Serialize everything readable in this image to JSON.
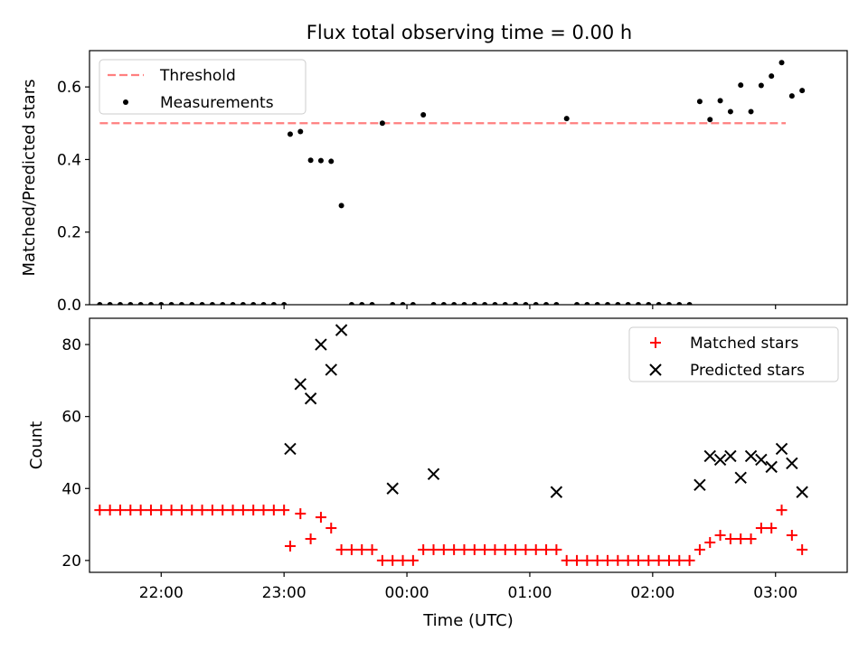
{
  "title": "Flux total observing time = 0.00 h",
  "chart_data": [
    {
      "type": "scatter",
      "ylabel": "Matched/Predicted stars",
      "ylim": [
        0,
        0.7
      ],
      "yticks": [
        0.0,
        0.2,
        0.4,
        0.6
      ],
      "ytick_labels": [
        "0.0",
        "0.2",
        "0.4",
        "0.6"
      ],
      "xlim": [
        "21:25",
        "03:35"
      ],
      "legend_position": "top-left",
      "series": [
        {
          "name": "Threshold",
          "kind": "dashed-line",
          "color": "#ff7f7f",
          "x": [
            "21:30",
            "03:05"
          ],
          "y": [
            0.5,
            0.5
          ]
        },
        {
          "name": "Measurements",
          "kind": "points",
          "color": "#000000",
          "x": [
            "21:30",
            "21:35",
            "21:40",
            "21:45",
            "21:50",
            "21:55",
            "22:00",
            "22:05",
            "22:10",
            "22:15",
            "22:20",
            "22:25",
            "22:30",
            "22:35",
            "22:40",
            "22:45",
            "22:50",
            "22:55",
            "23:00",
            "23:03",
            "23:08",
            "23:13",
            "23:18",
            "23:23",
            "23:28",
            "23:33",
            "23:38",
            "23:43",
            "23:48",
            "23:53",
            "23:58",
            "00:03",
            "00:08",
            "00:13",
            "00:18",
            "00:23",
            "00:28",
            "00:33",
            "00:38",
            "00:43",
            "00:48",
            "00:53",
            "00:58",
            "01:03",
            "01:08",
            "01:13",
            "01:18",
            "01:23",
            "01:28",
            "01:33",
            "01:38",
            "01:43",
            "01:48",
            "01:53",
            "01:58",
            "02:03",
            "02:08",
            "02:13",
            "02:18",
            "02:23",
            "02:28",
            "02:33",
            "02:38",
            "02:43",
            "02:48",
            "02:53",
            "02:58",
            "03:03",
            "03:08",
            "03:13"
          ],
          "y": [
            0,
            0,
            0,
            0,
            0,
            0,
            0,
            0,
            0,
            0,
            0,
            0,
            0,
            0,
            0,
            0,
            0,
            0,
            0,
            0.47,
            0.477,
            0.398,
            0.397,
            0.395,
            0.273,
            0,
            0,
            0,
            0.5,
            0,
            0,
            0,
            0.523,
            0,
            0,
            0,
            0,
            0,
            0,
            0,
            0,
            0,
            0,
            0,
            0,
            0,
            0.513,
            0,
            0,
            0,
            0,
            0,
            0,
            0,
            0,
            0,
            0,
            0,
            0,
            0.56,
            0.51,
            0.562,
            0.532,
            0.605,
            0.532,
            0.604,
            0.63,
            0.667,
            0.575,
            0.59
          ]
        }
      ]
    },
    {
      "type": "scatter",
      "xlabel": "Time (UTC)",
      "ylabel": "Count",
      "ylim": [
        16.7,
        87.3
      ],
      "yticks": [
        20,
        40,
        60,
        80
      ],
      "ytick_labels": [
        "20",
        "40",
        "60",
        "80"
      ],
      "xlim": [
        "21:25",
        "03:35"
      ],
      "xticks": [
        "22:00",
        "23:00",
        "00:00",
        "01:00",
        "02:00",
        "03:00"
      ],
      "xtick_labels": [
        "22:00",
        "23:00",
        "00:00",
        "01:00",
        "02:00",
        "03:00"
      ],
      "legend_position": "top-right",
      "series": [
        {
          "name": "Matched stars",
          "kind": "plus",
          "color": "#ff0000",
          "x": [
            "21:30",
            "21:35",
            "21:40",
            "21:45",
            "21:50",
            "21:55",
            "22:00",
            "22:05",
            "22:10",
            "22:15",
            "22:20",
            "22:25",
            "22:30",
            "22:35",
            "22:40",
            "22:45",
            "22:50",
            "22:55",
            "23:00",
            "23:03",
            "23:08",
            "23:13",
            "23:18",
            "23:23",
            "23:28",
            "23:33",
            "23:38",
            "23:43",
            "23:48",
            "23:53",
            "23:58",
            "00:03",
            "00:08",
            "00:13",
            "00:18",
            "00:23",
            "00:28",
            "00:33",
            "00:38",
            "00:43",
            "00:48",
            "00:53",
            "00:58",
            "01:03",
            "01:08",
            "01:13",
            "01:18",
            "01:23",
            "01:28",
            "01:33",
            "01:38",
            "01:43",
            "01:48",
            "01:53",
            "01:58",
            "02:03",
            "02:08",
            "02:13",
            "02:18",
            "02:23",
            "02:28",
            "02:33",
            "02:38",
            "02:43",
            "02:48",
            "02:53",
            "02:58",
            "03:03",
            "03:08",
            "03:13"
          ],
          "y": [
            34,
            34,
            34,
            34,
            34,
            34,
            34,
            34,
            34,
            34,
            34,
            34,
            34,
            34,
            34,
            34,
            34,
            34,
            34,
            24,
            33,
            26,
            32,
            29,
            23,
            23,
            23,
            23,
            20,
            20,
            20,
            20,
            23,
            23,
            23,
            23,
            23,
            23,
            23,
            23,
            23,
            23,
            23,
            23,
            23,
            23,
            20,
            20,
            20,
            20,
            20,
            20,
            20,
            20,
            20,
            20,
            20,
            20,
            20,
            23,
            25,
            27,
            26,
            26,
            26,
            29,
            29,
            34,
            27,
            23
          ]
        },
        {
          "name": "Predicted stars",
          "kind": "cross",
          "color": "#000000",
          "x": [
            "23:03",
            "23:08",
            "23:13",
            "23:18",
            "23:23",
            "23:28",
            "23:53",
            "00:13",
            "01:13",
            "02:23",
            "02:28",
            "02:33",
            "02:38",
            "02:43",
            "02:48",
            "02:53",
            "02:58",
            "03:03",
            "03:08",
            "03:13"
          ],
          "y": [
            51,
            69,
            65,
            80,
            73,
            84,
            40,
            44,
            39,
            41,
            49,
            48,
            49,
            43,
            49,
            48,
            46,
            51,
            47,
            39
          ]
        }
      ]
    }
  ]
}
